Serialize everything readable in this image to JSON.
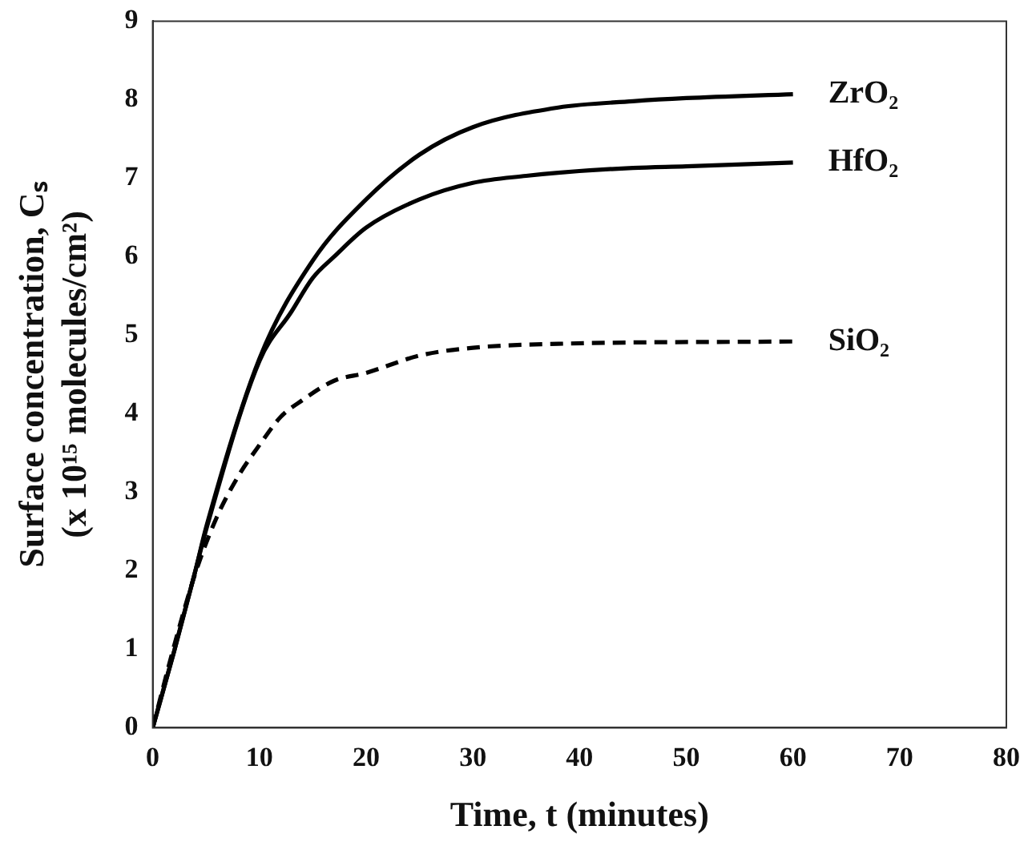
{
  "chart_data": {
    "type": "line",
    "xlabel": "Time, t (minutes)",
    "ylabel": "Surface concentration, Cₛ (x 10¹⁵ molecules/cm²)",
    "xlim": [
      0,
      80
    ],
    "xticks": [
      0,
      10,
      20,
      30,
      40,
      50,
      60,
      70,
      80
    ],
    "ylim": [
      0,
      9
    ],
    "yticks": [
      0,
      1,
      2,
      3,
      4,
      5,
      6,
      7,
      8,
      9
    ],
    "grid": false,
    "legend": false,
    "marker": "none",
    "series": [
      {
        "name": "ZrO₂",
        "color": "#000000",
        "line_style": "solid",
        "x": [
          0,
          2,
          4,
          5,
          10,
          15,
          20,
          25,
          30,
          38,
          45,
          50,
          60
        ],
        "values": [
          0,
          0.97,
          2.0,
          2.55,
          4.7,
          5.95,
          6.73,
          7.3,
          7.65,
          7.9,
          7.98,
          8.02,
          8.07
        ]
      },
      {
        "name": "HfO₂",
        "color": "#000000",
        "line_style": "solid",
        "x": [
          0,
          2,
          4,
          5,
          10,
          13,
          15,
          17,
          20,
          25,
          30,
          35,
          38,
          45,
          50,
          60
        ],
        "values": [
          0,
          0.97,
          2.0,
          2.52,
          4.67,
          5.3,
          5.73,
          6.0,
          6.37,
          6.73,
          6.94,
          7.03,
          7.07,
          7.13,
          7.15,
          7.2
        ]
      },
      {
        "name": "SiO₂",
        "color": "#000000",
        "line_style": "dashed",
        "x": [
          0,
          2,
          4,
          6,
          8,
          10,
          12,
          14,
          17,
          20,
          25,
          30,
          38,
          60
        ],
        "values": [
          0,
          1.04,
          1.97,
          2.68,
          3.2,
          3.6,
          3.96,
          4.17,
          4.42,
          4.52,
          4.74,
          4.84,
          4.89,
          4.92
        ]
      }
    ]
  }
}
